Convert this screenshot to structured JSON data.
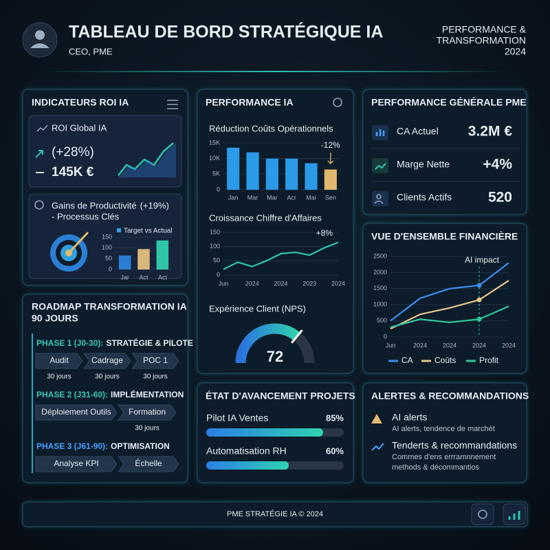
{
  "header": {
    "title": "TABLEAU DE BORD STRATÉGIQUE IA",
    "subtitle": "CEO, PME",
    "tagline": [
      "PERFORMANCE &",
      "TRANSFORMATION",
      "2024"
    ]
  },
  "roi": {
    "title": "INDICATEURS ROI IA",
    "global": {
      "label": "ROI Global IA",
      "growth": "(+28%)",
      "value": "145K €"
    },
    "productivity": {
      "label": "Gains de Productivité",
      "growth": "(+19%)",
      "sublabel": "- Processus Clés",
      "chart_data": {
        "type": "bar",
        "legend": "Target vs Actual",
        "categories": [
          "Jar",
          "Act",
          "Act"
        ],
        "values": [
          65,
          95,
          135
        ],
        "colors": [
          "#2a7fd4",
          "#d8b77a",
          "#2fc6a8"
        ],
        "ylim": [
          0,
          150
        ],
        "yticks": [
          0,
          50,
          100,
          150
        ]
      }
    }
  },
  "performance": {
    "title": "PERFORMANCE IA",
    "costs": {
      "chart_data": {
        "type": "bar",
        "title": "Réduction Coûts Opérationnels",
        "annotation": "-12%",
        "categories": [
          "Jan",
          "Mar",
          "Mar",
          "Acr",
          "Mai",
          "Sen"
        ],
        "values": [
          13500,
          12000,
          10000,
          10000,
          8500,
          6500
        ],
        "colors": [
          "#2a9be8",
          "#2a9be8",
          "#2a9be8",
          "#2a9be8",
          "#2a9be8",
          "#e0b96e"
        ],
        "ylim": [
          0,
          15000
        ],
        "yticks": [
          0,
          {
            "value": 5000,
            "label": "5K"
          },
          {
            "value": 10000,
            "label": "10K"
          },
          {
            "value": 15000,
            "label": "15K"
          }
        ]
      }
    },
    "revenue": {
      "chart_data": {
        "type": "line",
        "title": "Croissance Chiffre d'Affaires",
        "annotation": "+8%",
        "categories": [
          "Jun",
          null,
          "2024",
          null,
          "2024",
          null,
          "2023",
          null,
          "2024"
        ],
        "values": [
          20,
          45,
          30,
          50,
          75,
          80,
          70,
          95,
          115
        ],
        "color": "#2fc6b0",
        "ylim": [
          0,
          150
        ],
        "yticks": [
          0,
          50,
          100,
          150
        ]
      }
    },
    "nps": {
      "chart_data": {
        "type": "gauge",
        "title": "Expérience Client (NPS)",
        "value": 72,
        "ylim": [
          0,
          100
        ]
      }
    }
  },
  "general": {
    "title": "PERFORMANCE GÉNÉRALE PME",
    "rows": [
      {
        "label": "CA Actuel",
        "value": "3.2M €"
      },
      {
        "label": "Marge Nette",
        "value": "+4%"
      },
      {
        "label": "Clients Actifs",
        "value": "520"
      }
    ]
  },
  "finance": {
    "chart_data": {
      "type": "line",
      "title": "VUE D'ENSEMBLE FINANCIÈRE",
      "annotation": "AI impact",
      "categories": [
        "Jun",
        "2024",
        "2024",
        "2024",
        "2024"
      ],
      "ylim": [
        0,
        2500
      ],
      "yticks": [
        0,
        500,
        1000,
        1500,
        2000,
        2500
      ],
      "legend": "bottom",
      "series": [
        {
          "name": "CA",
          "color": "#3b8ff0",
          "values": [
            500,
            1200,
            1500,
            1600,
            2300
          ]
        },
        {
          "name": "Coûts",
          "color": "#e6c88c",
          "values": [
            250,
            700,
            900,
            1150,
            1750
          ]
        },
        {
          "name": "Profit",
          "color": "#2fc6a0",
          "values": [
            300,
            550,
            450,
            550,
            950
          ]
        }
      ]
    }
  },
  "roadmap": {
    "title": [
      "ROADMAP TRANSFORMATION IA",
      "90 JOURS"
    ],
    "phases": [
      {
        "label": "PHASE 1 (J0-30):",
        "name": "STRATÉGIE & PILOTE",
        "color": "#3cc8b4",
        "steps": [
          {
            "name": "Audit",
            "duration": "30 jours"
          },
          {
            "name": "Cadrage",
            "duration": "30 jours"
          },
          {
            "name": "POC 1",
            "duration": "30 jours"
          }
        ]
      },
      {
        "label": "PHASE 2 (J31-60):",
        "name": "IMPLÉMENTATION",
        "color": "#3cc8b4",
        "steps": [
          {
            "name": "Déploiement Outils"
          },
          {
            "name": "Formation",
            "duration": "30 jours"
          }
        ]
      },
      {
        "label": "PHASE 3 (J61-90):",
        "name": "OPTIMISATION",
        "color": "#4aa0ff",
        "steps": [
          {
            "name": "Analyse KPI"
          },
          {
            "name": "Échelle"
          }
        ]
      }
    ]
  },
  "projects": {
    "title": "ÉTAT D'AVANCEMENT PROJETS",
    "items": [
      {
        "name": "Pilot IA Ventes",
        "value": 85,
        "value_label": "85%"
      },
      {
        "name": "Automatisation RH",
        "value": 60,
        "value_label": "60%"
      }
    ]
  },
  "alerts": {
    "title": "ALERTES & RECOMMANDATIONS",
    "items": [
      {
        "title": "AI alerts",
        "text": [
          "AI alerts, tendence de marchét"
        ]
      },
      {
        "title": "Tenderts & recommandations",
        "text": [
          "Commes d'ens errramnnement",
          "methods & décommantios"
        ]
      }
    ]
  },
  "footer": {
    "text": "PME STRATÉGIE IA © 2024"
  }
}
